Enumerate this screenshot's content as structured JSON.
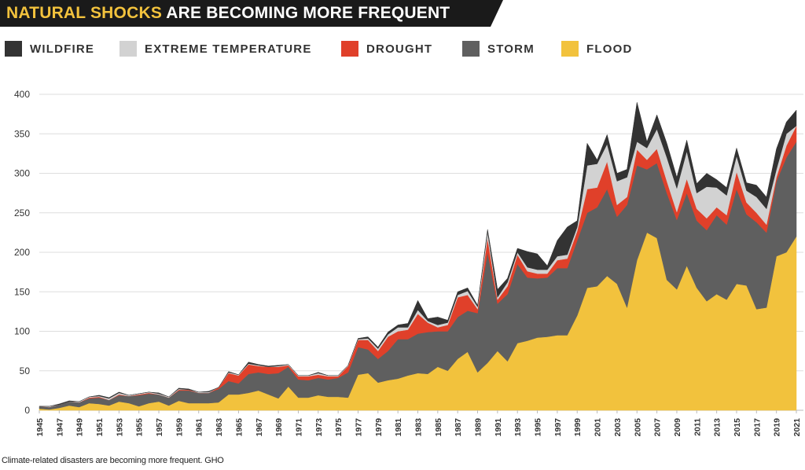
{
  "title": {
    "highlight": "NATURAL SHOCKS",
    "rest": "ARE BECOMING MORE FREQUENT"
  },
  "caption": "Climate-related disasters are becoming more frequent. GHO",
  "colors": {
    "flood": "#f2c23d",
    "storm": "#5f5f5f",
    "drought": "#e0402a",
    "extreme_temperature": "#d2d2d2",
    "wildfire": "#333333",
    "banner": "#1a1a1a",
    "grid": "#dddddd",
    "text": "#333333"
  },
  "legend": [
    {
      "key": "wildfire",
      "label": "WILDFIRE",
      "color": "#333333"
    },
    {
      "key": "extreme_temperature",
      "label": "EXTREME TEMPERATURE",
      "color": "#d2d2d2"
    },
    {
      "key": "drought",
      "label": "DROUGHT",
      "color": "#e0402a"
    },
    {
      "key": "storm",
      "label": "STORM",
      "color": "#5f5f5f"
    },
    {
      "key": "flood",
      "label": "FLOOD",
      "color": "#f2c23d"
    }
  ],
  "chart_data": {
    "type": "area",
    "stacked": true,
    "title": "NATURAL SHOCKS ARE BECOMING MORE FREQUENT",
    "xlabel": "",
    "ylabel": "",
    "ylim": [
      0,
      400
    ],
    "yticks": [
      0,
      50,
      100,
      150,
      200,
      250,
      300,
      350,
      400
    ],
    "grid": true,
    "legend_position": "top",
    "xticks": [
      1945,
      1947,
      1949,
      1951,
      1953,
      1955,
      1957,
      1959,
      1961,
      1963,
      1965,
      1967,
      1969,
      1971,
      1973,
      1975,
      1977,
      1979,
      1981,
      1983,
      1985,
      1987,
      1989,
      1991,
      1993,
      1995,
      1997,
      1999,
      2001,
      2003,
      2005,
      2007,
      2009,
      2011,
      2013,
      2015,
      2017,
      2019,
      2021
    ],
    "x": [
      1945,
      1946,
      1947,
      1948,
      1949,
      1950,
      1951,
      1952,
      1953,
      1954,
      1955,
      1956,
      1957,
      1958,
      1959,
      1960,
      1961,
      1962,
      1963,
      1964,
      1965,
      1966,
      1967,
      1968,
      1969,
      1970,
      1971,
      1972,
      1973,
      1974,
      1975,
      1976,
      1977,
      1978,
      1979,
      1980,
      1981,
      1982,
      1983,
      1984,
      1985,
      1986,
      1987,
      1988,
      1989,
      1990,
      1991,
      1992,
      1993,
      1994,
      1995,
      1996,
      1997,
      1998,
      1999,
      2000,
      2001,
      2002,
      2003,
      2004,
      2005,
      2006,
      2007,
      2008,
      2009,
      2010,
      2011,
      2012,
      2013,
      2014,
      2015,
      2016,
      2017,
      2018,
      2019,
      2020,
      2021
    ],
    "series": [
      {
        "name": "FLOOD",
        "key": "flood",
        "values": [
          2,
          1,
          3,
          6,
          4,
          9,
          8,
          6,
          11,
          9,
          5,
          9,
          11,
          6,
          12,
          9,
          9,
          9,
          10,
          20,
          20,
          22,
          25,
          20,
          15,
          30,
          16,
          16,
          19,
          17,
          17,
          16,
          45,
          47,
          35,
          38,
          40,
          44,
          47,
          46,
          55,
          50,
          65,
          74,
          48,
          60,
          75,
          62,
          85,
          88,
          92,
          93,
          95,
          95,
          120,
          155,
          157,
          170,
          160,
          130,
          190,
          225,
          218,
          165,
          153,
          183,
          155,
          138,
          147,
          140,
          160,
          158,
          128,
          130,
          195,
          200,
          220
        ]
      },
      {
        "name": "STORM",
        "key": "storm",
        "values": [
          3,
          3,
          4,
          5,
          6,
          6,
          8,
          7,
          8,
          9,
          14,
          12,
          9,
          10,
          13,
          16,
          13,
          13,
          17,
          17,
          14,
          24,
          23,
          26,
          32,
          25,
          23,
          22,
          22,
          22,
          24,
          32,
          35,
          30,
          30,
          37,
          50,
          46,
          50,
          53,
          45,
          50,
          53,
          52,
          75,
          140,
          60,
          85,
          100,
          80,
          75,
          75,
          85,
          85,
          95,
          95,
          100,
          110,
          85,
          130,
          120,
          80,
          95,
          110,
          88,
          92,
          85,
          90,
          100,
          95,
          120,
          90,
          110,
          95,
          95,
          120,
          120
        ]
      },
      {
        "name": "DROUGHT",
        "key": "drought",
        "values": [
          0,
          0,
          0,
          0,
          0,
          1,
          1,
          0,
          1,
          0,
          1,
          1,
          0,
          0,
          1,
          1,
          0,
          0,
          2,
          10,
          10,
          12,
          8,
          9,
          8,
          2,
          4,
          5,
          4,
          4,
          2,
          8,
          9,
          12,
          10,
          18,
          10,
          12,
          25,
          12,
          5,
          8,
          25,
          20,
          5,
          18,
          5,
          10,
          12,
          8,
          6,
          5,
          10,
          12,
          12,
          30,
          25,
          35,
          15,
          10,
          20,
          12,
          18,
          15,
          10,
          18,
          15,
          15,
          10,
          12,
          22,
          15,
          12,
          10,
          5,
          15,
          20
        ]
      },
      {
        "name": "EXTREME TEMPERATURE",
        "key": "extreme_temperature",
        "values": [
          0,
          1,
          0,
          0,
          1,
          1,
          1,
          2,
          2,
          1,
          1,
          1,
          1,
          1,
          1,
          0,
          1,
          1,
          0,
          1,
          1,
          1,
          1,
          0,
          1,
          1,
          1,
          1,
          2,
          1,
          1,
          1,
          1,
          2,
          3,
          3,
          5,
          3,
          5,
          2,
          3,
          3,
          3,
          5,
          3,
          8,
          3,
          5,
          3,
          5,
          5,
          5,
          5,
          5,
          5,
          30,
          30,
          22,
          30,
          25,
          10,
          15,
          25,
          30,
          30,
          35,
          20,
          40,
          25,
          25,
          20,
          15,
          20,
          20,
          10,
          15,
          0
        ]
      },
      {
        "name": "WILDFIRE",
        "key": "wildfire",
        "values": [
          0,
          0,
          1,
          1,
          0,
          0,
          1,
          1,
          1,
          0,
          0,
          0,
          1,
          0,
          1,
          1,
          0,
          1,
          0,
          1,
          0,
          2,
          1,
          1,
          1,
          0,
          0,
          0,
          1,
          0,
          0,
          0,
          1,
          2,
          2,
          3,
          3,
          5,
          12,
          3,
          10,
          3,
          4,
          4,
          2,
          3,
          10,
          5,
          5,
          20,
          20,
          5,
          20,
          35,
          8,
          28,
          5,
          12,
          10,
          10,
          50,
          8,
          18,
          18,
          14,
          14,
          12,
          17,
          10,
          10,
          10,
          10,
          15,
          15,
          26,
          15,
          20
        ]
      }
    ]
  }
}
